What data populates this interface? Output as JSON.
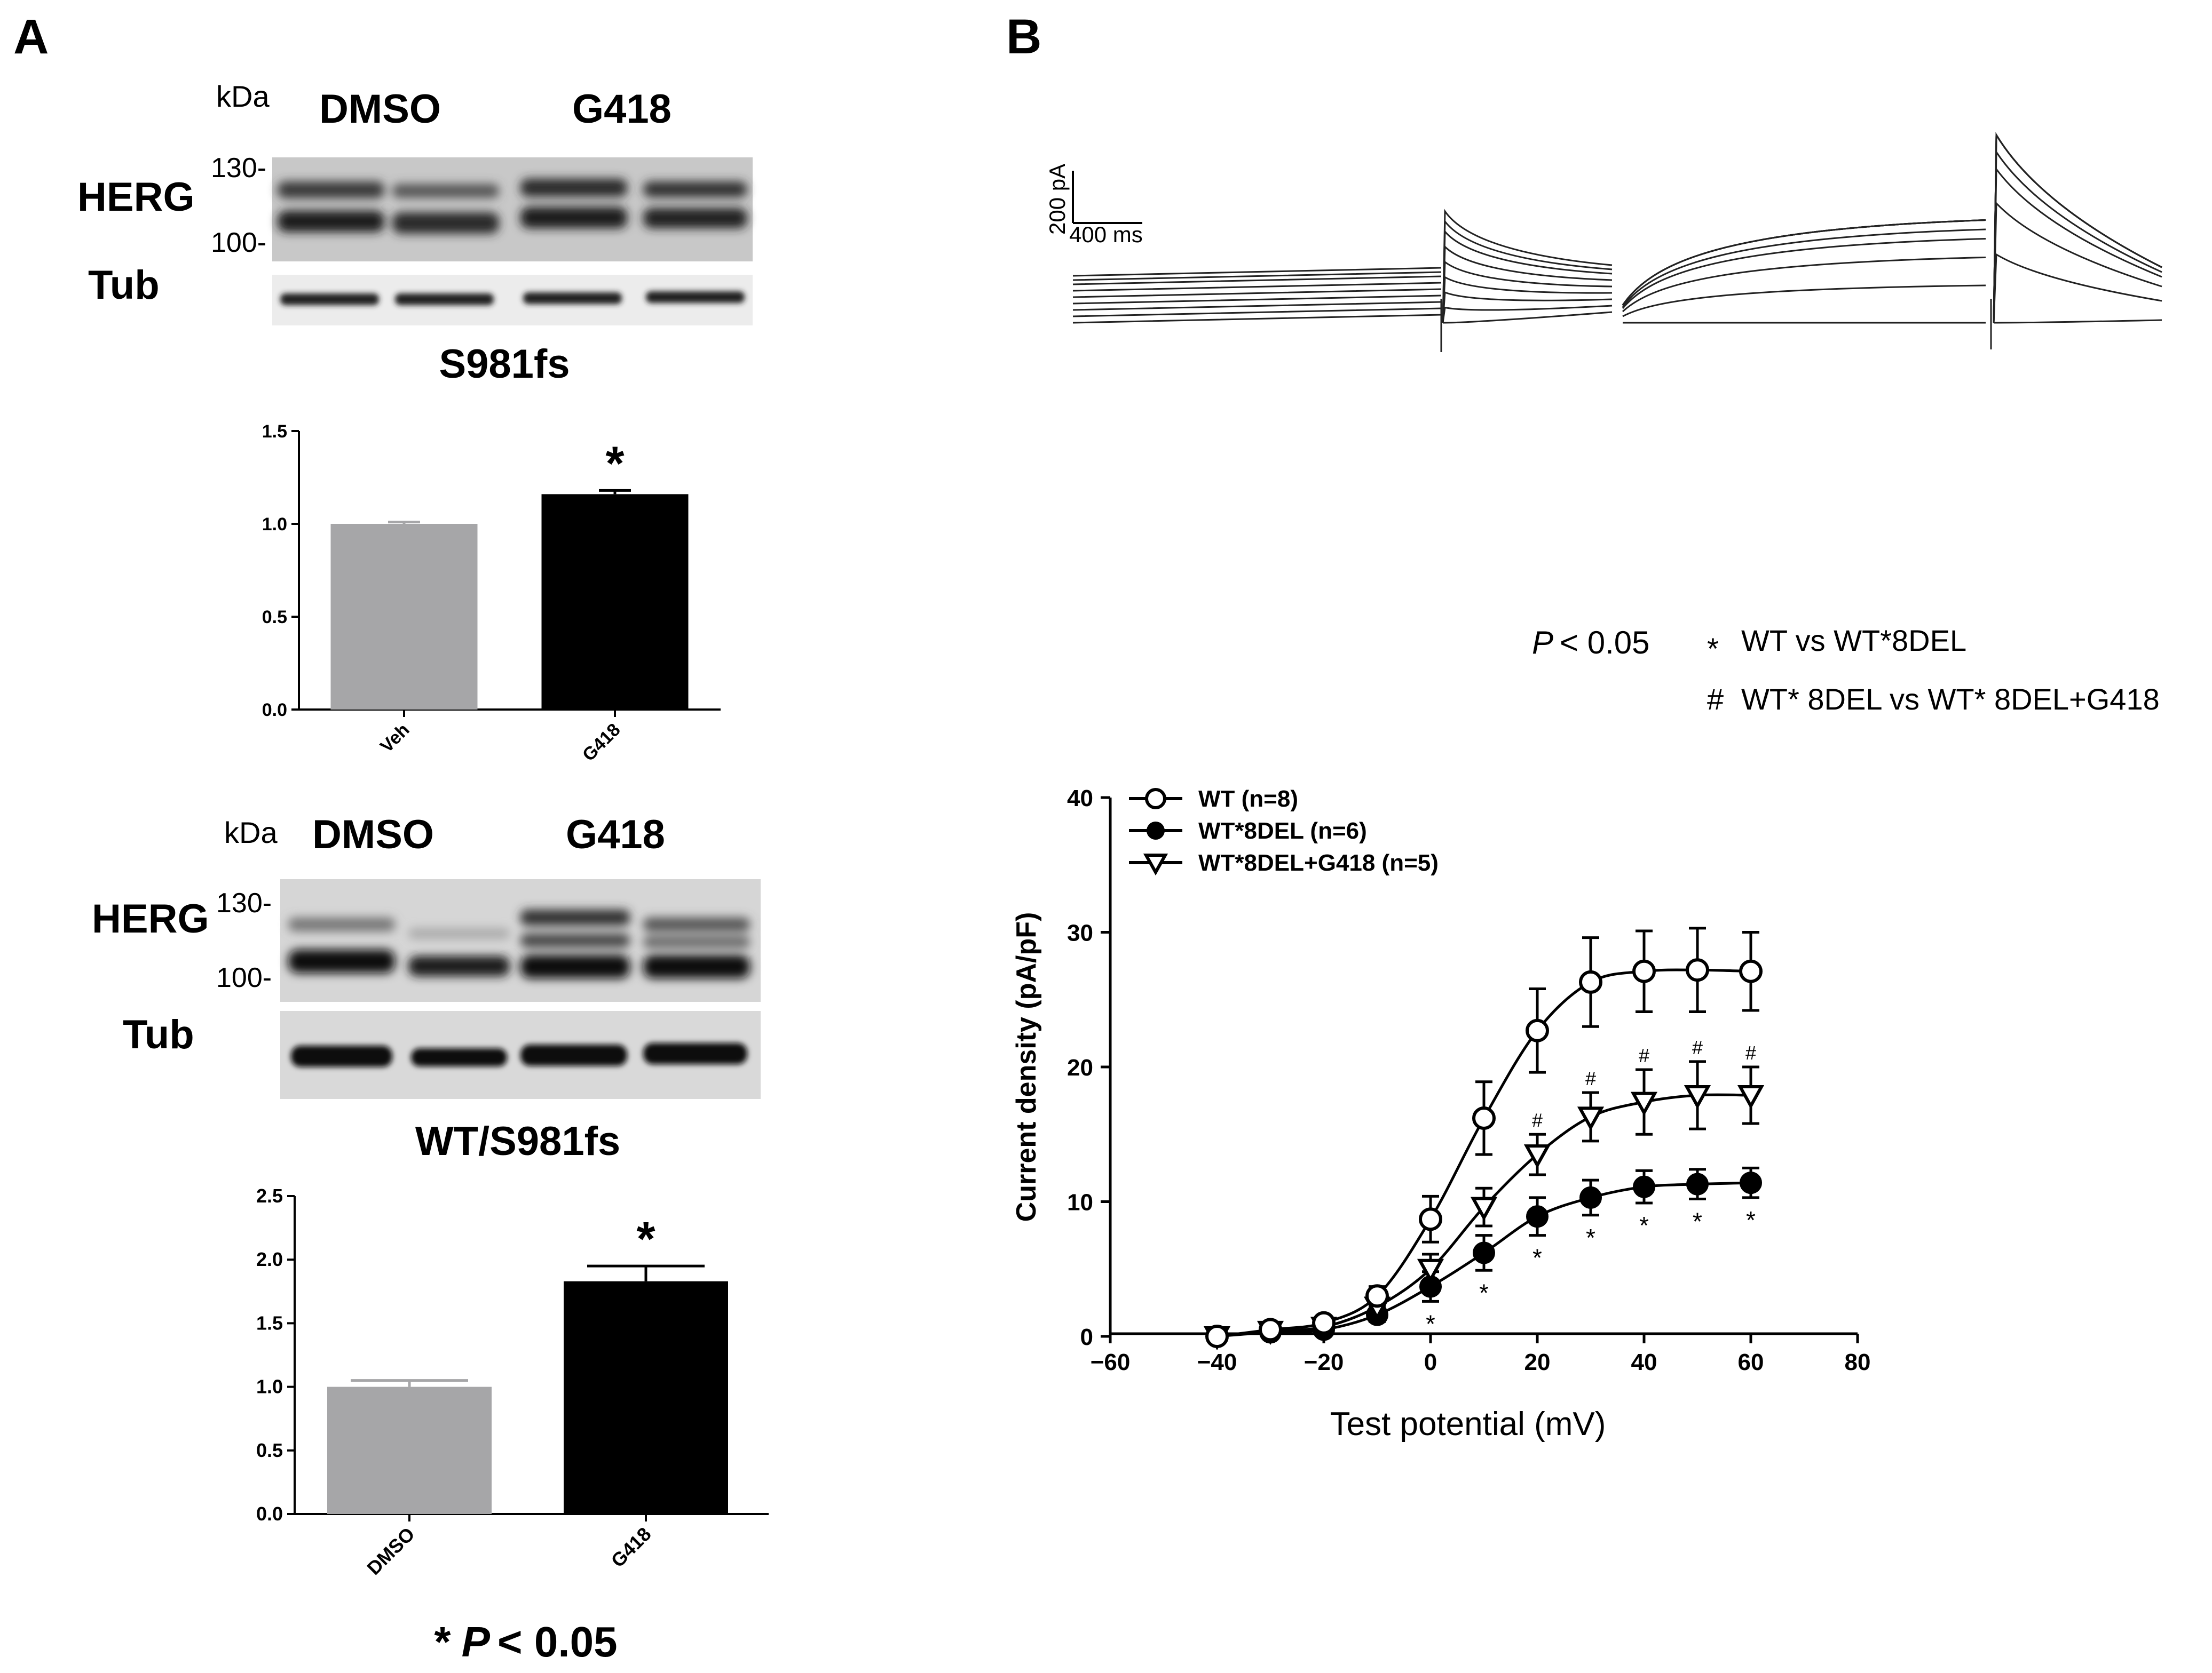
{
  "panel_a": {
    "label": "A",
    "blot1": {
      "kda": "kDa",
      "lane_groups": [
        "DMSO",
        "G418"
      ],
      "protein1": "HERG",
      "protein2": "Tub",
      "marker_hi": "130-",
      "marker_lo": "100-",
      "title": "S981fs"
    },
    "blot2": {
      "kda": "kDa",
      "lane_groups": [
        "DMSO",
        "G418"
      ],
      "protein1": "HERG",
      "protein2": "Tub",
      "marker_hi": "130-",
      "marker_lo": "100-",
      "title": "WT/S981fs"
    },
    "footnote_star": "*",
    "footnote_p": "P",
    "footnote_rest": "< 0.05"
  },
  "panel_b": {
    "label": "B",
    "scale_y": "200 pA",
    "scale_x": "400 ms",
    "legend_p": "P",
    "legend_p_rest": "< 0.05",
    "legend_sym1": "*",
    "legend_text1": "WT vs WT*8DEL",
    "legend_sym2": "#",
    "legend_text2": "WT* 8DEL vs WT* 8DEL+G418"
  },
  "colors": {
    "grey_bar": "#a6a6a8",
    "black_bar": "#000000",
    "blot_bg": "#d9d9d9"
  },
  "chart_data": [
    {
      "type": "bar",
      "categories": [
        "Veh",
        "G418"
      ],
      "values": [
        1.0,
        1.16
      ],
      "errors": [
        0.01,
        0.02
      ],
      "colors": [
        "#a6a6a8",
        "#000000"
      ],
      "ylim": [
        0,
        1.5
      ],
      "yticks": [
        "0.0",
        "0.5",
        "1.0",
        "1.5"
      ],
      "significance": [
        "",
        "*"
      ]
    },
    {
      "type": "bar",
      "categories": [
        "DMSO",
        "G418"
      ],
      "values": [
        1.0,
        1.83
      ],
      "errors": [
        0.05,
        0.12
      ],
      "colors": [
        "#a6a6a8",
        "#000000"
      ],
      "ylim": [
        0,
        2.5
      ],
      "yticks": [
        "0.0",
        "0.5",
        "1.0",
        "1.5",
        "2.0",
        "2.5"
      ],
      "significance": [
        "",
        "*"
      ]
    },
    {
      "type": "line",
      "xlabel": "Test potential (mV)",
      "ylabel": "Current density (pA/pF)",
      "xlim": [
        -60,
        80
      ],
      "ylim": [
        0,
        40
      ],
      "xticks": [
        "−60",
        "−40",
        "−20",
        "0",
        "20",
        "40",
        "60",
        "80"
      ],
      "yticks": [
        "0",
        "10",
        "20",
        "30",
        "40"
      ],
      "x": [
        -40,
        -30,
        -20,
        -10,
        0,
        10,
        20,
        30,
        40,
        50,
        60
      ],
      "series": [
        {
          "name": "WT (n=8)",
          "marker": "open-circle",
          "values": [
            0,
            0.5,
            1.0,
            3.0,
            8.7,
            16.2,
            22.7,
            26.3,
            27.1,
            27.2,
            27.1
          ],
          "errors": [
            0.3,
            0.3,
            0.4,
            0.7,
            1.7,
            2.7,
            3.1,
            3.3,
            3.0,
            3.1,
            2.9
          ]
        },
        {
          "name": "WT*8DEL (n=6)",
          "marker": "filled-circle",
          "values": [
            0,
            0.3,
            0.5,
            1.6,
            3.7,
            6.2,
            8.9,
            10.3,
            11.1,
            11.3,
            11.4
          ],
          "errors": [
            0.2,
            0.2,
            0.3,
            0.5,
            1.1,
            1.3,
            1.4,
            1.3,
            1.2,
            1.1,
            1.1
          ]
        },
        {
          "name": "WT*8DEL+G418 (n=5)",
          "marker": "open-triangle-down",
          "values": [
            0,
            0.4,
            0.7,
            2.2,
            5.0,
            9.6,
            13.5,
            16.3,
            17.4,
            17.9,
            17.9
          ],
          "errors": [
            0.2,
            0.2,
            0.3,
            0.6,
            1.1,
            1.4,
            1.5,
            1.8,
            2.4,
            2.5,
            2.1
          ]
        }
      ],
      "star_marks_x": [
        0,
        10,
        20,
        30,
        40,
        50,
        60
      ],
      "hash_marks_x": [
        20,
        30,
        40,
        50,
        60
      ],
      "star_symbol": "*",
      "hash_symbol": "#"
    }
  ]
}
